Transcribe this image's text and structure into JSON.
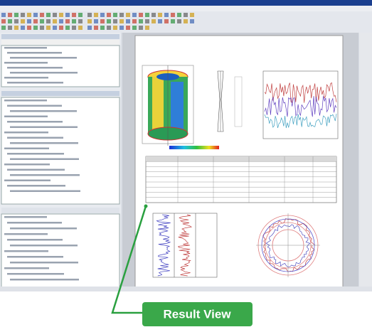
{
  "callout": {
    "label": "Result View"
  }
}
